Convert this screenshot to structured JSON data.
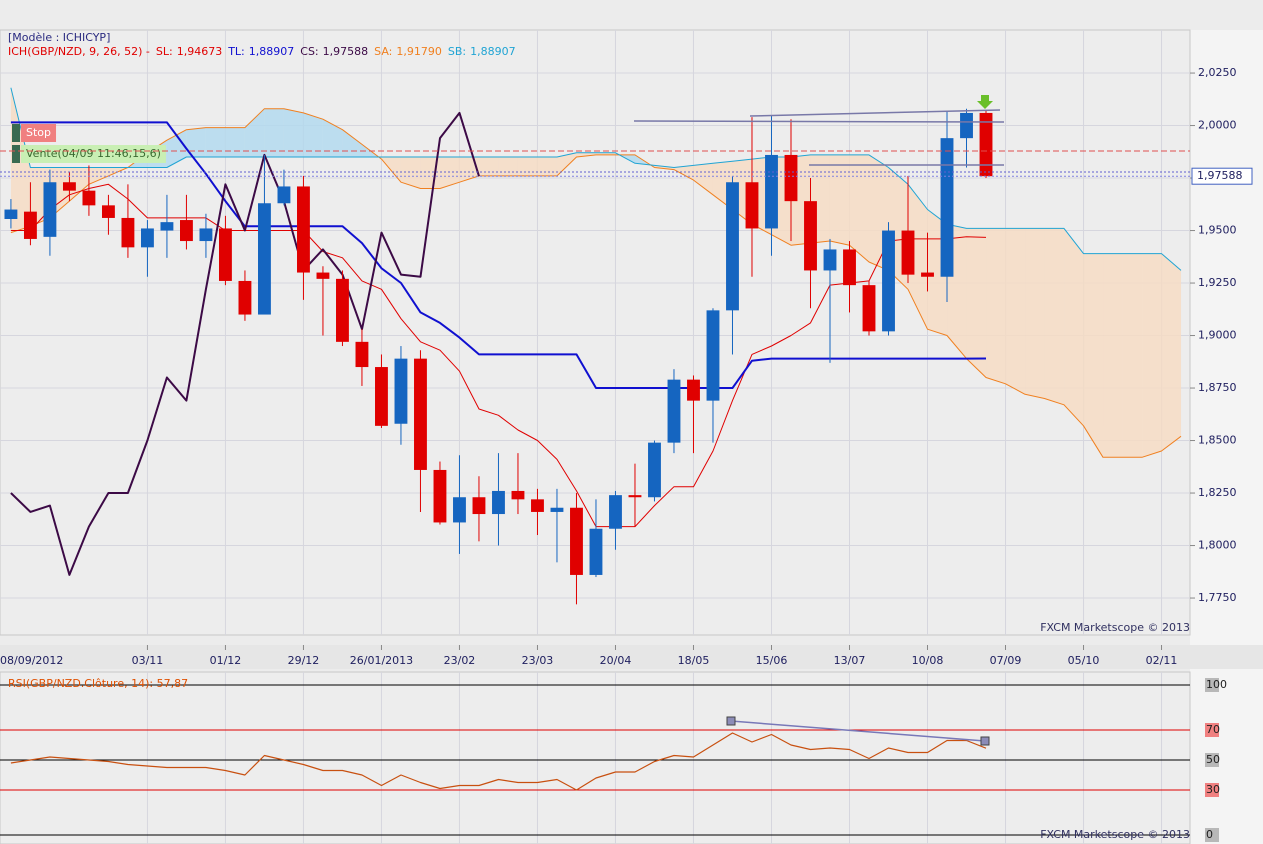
{
  "chart_data": [
    {
      "type": "candlestick",
      "title": "[Modèle : ICHICYP]",
      "indicator": "ICH(GBP/NZD, 9, 26, 52) -",
      "indicator_color": "#e00000",
      "watermark": "FXCM Marketscope © 2013",
      "up_color": "#1565c0",
      "down_color": "#e00000",
      "cloud_up_color": "#b3d9ee",
      "cloud_down_color": "#f6dcc4",
      "grid": true,
      "xlim": [
        -0.56,
        60.46
      ],
      "xticks": [
        {
          "value": -1,
          "label": "08/09/2012"
        },
        {
          "value": 7,
          "label": "03/11"
        },
        {
          "value": 11,
          "label": "01/12"
        },
        {
          "value": 15,
          "label": "29/12"
        },
        {
          "value": 19,
          "label": "26/01/2013"
        },
        {
          "value": 23,
          "label": "23/02"
        },
        {
          "value": 27,
          "label": "23/03"
        },
        {
          "value": 31,
          "label": "20/04"
        },
        {
          "value": 35,
          "label": "18/05"
        },
        {
          "value": 39,
          "label": "15/06"
        },
        {
          "value": 43,
          "label": "13/07"
        },
        {
          "value": 47,
          "label": "10/08"
        },
        {
          "value": 51,
          "label": "07/09"
        },
        {
          "value": 55,
          "label": "05/10"
        },
        {
          "value": 59,
          "label": "02/11"
        }
      ],
      "ylim": [
        1.7574,
        2.0455
      ],
      "yticks": [
        {
          "value": 1.775,
          "label": "1,7750"
        },
        {
          "value": 1.8,
          "label": "1,8000"
        },
        {
          "value": 1.825,
          "label": "1,8250"
        },
        {
          "value": 1.85,
          "label": "1,8500"
        },
        {
          "value": 1.875,
          "label": "1,8750"
        },
        {
          "value": 1.9,
          "label": "1,9000"
        },
        {
          "value": 1.925,
          "label": "1,9250"
        },
        {
          "value": 1.95,
          "label": "1,9500"
        },
        {
          "value": 1.975,
          "label": "1,9750"
        },
        {
          "value": 2.0,
          "label": "2,0000"
        },
        {
          "value": 2.025,
          "label": "2,0250"
        }
      ],
      "last_price": {
        "value": 1.97588,
        "label": "1,97588"
      },
      "annotations": [
        {
          "text": "Stop",
          "color": "#f08080"
        },
        {
          "text": "Vente(04/09 11:46,15,6)",
          "color": "#c9efb4"
        }
      ],
      "open": [
        1.9555,
        1.959,
        1.947,
        1.973,
        1.969,
        1.962,
        1.956,
        1.942,
        1.95,
        1.955,
        1.945,
        1.951,
        1.926,
        1.91,
        1.963,
        1.971,
        1.93,
        1.927,
        1.897,
        1.885,
        1.858,
        1.889,
        1.836,
        1.811,
        1.823,
        1.815,
        1.826,
        1.822,
        1.816,
        1.818,
        1.786,
        1.808,
        1.824,
        1.823,
        1.849,
        1.879,
        1.869,
        1.912,
        1.973,
        1.951,
        1.986,
        1.964,
        1.931,
        1.941,
        1.924,
        1.902,
        1.95,
        1.93,
        1.928,
        1.994,
        2.006
      ],
      "high": [
        1.965,
        1.973,
        1.979,
        1.978,
        1.981,
        1.967,
        1.972,
        1.955,
        1.967,
        1.967,
        1.958,
        1.957,
        1.931,
        1.986,
        1.979,
        1.976,
        1.933,
        1.931,
        1.903,
        1.891,
        1.895,
        1.893,
        1.84,
        1.843,
        1.833,
        1.844,
        1.844,
        1.827,
        1.827,
        1.825,
        1.822,
        1.826,
        1.839,
        1.85,
        1.884,
        1.881,
        1.913,
        1.976,
        2.004,
        2.005,
        2.003,
        1.975,
        1.946,
        1.945,
        1.926,
        1.954,
        1.976,
        1.949,
        2.007,
        2.008,
        2.007
      ],
      "low": [
        1.951,
        1.943,
        1.938,
        1.964,
        1.957,
        1.948,
        1.937,
        1.928,
        1.937,
        1.941,
        1.937,
        1.924,
        1.907,
        1.91,
        1.962,
        1.917,
        1.9,
        1.895,
        1.876,
        1.856,
        1.848,
        1.816,
        1.81,
        1.796,
        1.802,
        1.8,
        1.815,
        1.805,
        1.792,
        1.772,
        1.785,
        1.798,
        1.809,
        1.821,
        1.844,
        1.844,
        1.849,
        1.891,
        1.928,
        1.938,
        1.945,
        1.913,
        1.887,
        1.911,
        1.9,
        1.9,
        1.925,
        1.921,
        1.916,
        1.98,
        1.975
      ],
      "close": [
        1.96,
        1.946,
        1.973,
        1.969,
        1.962,
        1.956,
        1.942,
        1.951,
        1.954,
        1.945,
        1.951,
        1.926,
        1.91,
        1.963,
        1.971,
        1.93,
        1.927,
        1.897,
        1.885,
        1.857,
        1.889,
        1.836,
        1.811,
        1.823,
        1.815,
        1.826,
        1.822,
        1.816,
        1.818,
        1.786,
        1.808,
        1.824,
        1.823,
        1.849,
        1.879,
        1.869,
        1.912,
        1.973,
        1.951,
        1.986,
        1.964,
        1.931,
        1.941,
        1.924,
        1.902,
        1.95,
        1.929,
        1.928,
        1.994,
        2.006,
        1.97588
      ],
      "series": [
        {
          "name": "SL:",
          "legend_value": "1,94673",
          "color": "#e00000",
          "width": 1,
          "values": [
            1.95,
            1.95,
            1.96,
            1.967,
            1.97,
            1.972,
            1.965,
            1.956,
            1.956,
            1.956,
            1.956,
            1.95,
            1.95,
            1.95,
            1.95,
            1.95,
            1.94,
            1.937,
            1.926,
            1.922,
            1.908,
            1.897,
            1.893,
            1.883,
            1.865,
            1.862,
            1.855,
            1.85,
            1.841,
            1.826,
            1.809,
            1.809,
            1.809,
            1.819,
            1.828,
            1.828,
            1.845,
            1.869,
            1.891,
            1.895,
            1.9,
            1.906,
            1.924,
            1.925,
            1.926,
            1.945,
            1.946,
            1.946,
            1.946,
            1.947,
            1.94673,
            null,
            null,
            null,
            null,
            null,
            null,
            null,
            null,
            null,
            null
          ]
        },
        {
          "name": "TL:",
          "legend_value": "1,88907",
          "color": "#1010d0",
          "width": 2,
          "values": [
            2.0015,
            2.0015,
            2.0015,
            2.0015,
            2.0015,
            2.0015,
            2.0015,
            2.0015,
            2.0015,
            1.989,
            1.977,
            1.964,
            1.952,
            1.952,
            1.952,
            1.952,
            1.952,
            1.952,
            1.944,
            1.932,
            1.925,
            1.911,
            1.906,
            1.899,
            1.891,
            1.891,
            1.891,
            1.891,
            1.891,
            1.891,
            1.875,
            1.875,
            1.875,
            1.875,
            1.875,
            1.875,
            1.875,
            1.875,
            1.888,
            1.889,
            1.889,
            1.889,
            1.889,
            1.889,
            1.889,
            1.889,
            1.889,
            1.889,
            1.889,
            1.889,
            1.88907,
            null,
            null,
            null,
            null,
            null,
            null,
            null,
            null,
            null,
            null
          ]
        },
        {
          "name": "CS:",
          "legend_value": "1,97588",
          "color": "#3c0a46",
          "width": 2,
          "values": [
            1.825,
            1.816,
            1.819,
            1.786,
            1.809,
            1.825,
            1.825,
            1.85,
            1.88,
            1.869,
            1.922,
            1.972,
            1.95,
            1.986,
            1.964,
            1.931,
            1.941,
            1.929,
            1.903,
            1.949,
            1.929,
            1.928,
            1.994,
            2.006,
            1.97588,
            null,
            null,
            null,
            null,
            null,
            null,
            null,
            null,
            null,
            null,
            null,
            null,
            null,
            null,
            null,
            null,
            null,
            null,
            null,
            null,
            null,
            null,
            null,
            null,
            null,
            null,
            null,
            null,
            null,
            null,
            null,
            null,
            null,
            null,
            null,
            null
          ]
        },
        {
          "name": "SA:",
          "legend_value": "1,91790",
          "color": "#f08020",
          "width": 1,
          "values": [
            1.949,
            1.952,
            1.956,
            1.964,
            1.972,
            1.976,
            1.98,
            1.987,
            1.993,
            1.998,
            1.999,
            1.999,
            1.999,
            2.008,
            2.008,
            2.006,
            2.003,
            1.998,
            1.991,
            1.984,
            1.973,
            1.97,
            1.97,
            1.973,
            1.976,
            1.976,
            1.976,
            1.976,
            1.976,
            1.985,
            1.986,
            1.986,
            1.986,
            1.98,
            1.979,
            1.974,
            1.967,
            1.96,
            1.953,
            1.948,
            1.943,
            1.944,
            1.945,
            1.943,
            1.935,
            1.931,
            1.922,
            1.903,
            1.9,
            1.889,
            1.88,
            1.877,
            1.872,
            1.87,
            1.867,
            1.857,
            1.842,
            1.842,
            1.842,
            1.845,
            1.852
          ]
        },
        {
          "name": "SB:",
          "legend_value": "1,88907",
          "color": "#20a4d4",
          "width": 1,
          "values": [
            2.018,
            1.98,
            1.98,
            1.98,
            1.98,
            1.98,
            1.98,
            1.98,
            1.98,
            1.985,
            1.985,
            1.985,
            1.985,
            1.985,
            1.985,
            1.985,
            1.985,
            1.985,
            1.985,
            1.985,
            1.985,
            1.985,
            1.985,
            1.985,
            1.985,
            1.985,
            1.985,
            1.985,
            1.985,
            1.987,
            1.987,
            1.987,
            1.982,
            1.981,
            1.98,
            1.981,
            1.982,
            1.983,
            1.984,
            1.985,
            1.985,
            1.986,
            1.986,
            1.986,
            1.986,
            1.98,
            1.972,
            1.96,
            1.953,
            1.951,
            1.951,
            1.951,
            1.951,
            1.951,
            1.951,
            1.939,
            1.939,
            1.939,
            1.939,
            1.939,
            1.931
          ]
        }
      ]
    },
    {
      "type": "line",
      "title": "RSI(GBP/NZD.Clôture, 14): 57,87",
      "title_color": "#e05000",
      "watermark": "FXCM Marketscope © 2013",
      "xlim": [
        -0.56,
        60.46
      ],
      "ylim": [
        0,
        100
      ],
      "yticks": [
        0,
        30,
        50,
        70,
        100
      ],
      "ytick_colors": [
        "#000000",
        "#e00000",
        "#000000",
        "#e00000",
        "#000000"
      ],
      "series": [
        {
          "color": "#c85010",
          "values": [
            48,
            50,
            52,
            51,
            50,
            49,
            47,
            46,
            45,
            45,
            45,
            43,
            40,
            53,
            50,
            47,
            43,
            43,
            40,
            33,
            40,
            35,
            31,
            33,
            33,
            37,
            35,
            35,
            37,
            30,
            38,
            42,
            42,
            49,
            53,
            52,
            60,
            68,
            62,
            67,
            60,
            57,
            58,
            57,
            51,
            58,
            55,
            55,
            63,
            63,
            57.87
          ]
        }
      ]
    }
  ]
}
